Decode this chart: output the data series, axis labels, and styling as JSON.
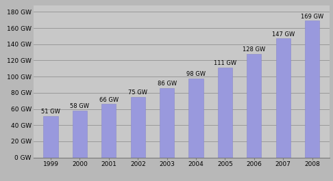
{
  "years": [
    "1999",
    "2000",
    "2001",
    "2002",
    "2003",
    "2004",
    "2005",
    "2006",
    "2007",
    "2008"
  ],
  "values": [
    51,
    58,
    66,
    75,
    86,
    98,
    111,
    128,
    147,
    169
  ],
  "labels": [
    "51 GW",
    "58 GW",
    "66 GW",
    "75 GW",
    "86 GW",
    "98 GW",
    "111 GW",
    "128 GW",
    "147 GW",
    "169 GW"
  ],
  "bar_color": "#9999dd",
  "bar_edge_color": "#8888cc",
  "background_color": "#b8b8b8",
  "plot_bg_color": "#c8c8c8",
  "yticks": [
    0,
    20,
    40,
    60,
    80,
    100,
    120,
    140,
    160,
    180
  ],
  "ytick_labels": [
    "0 GW",
    "20 GW",
    "40 GW",
    "60 GW",
    "80 GW",
    "100 GW",
    "120 GW",
    "140 GW",
    "160 GW",
    "180 GW"
  ],
  "ylim": [
    0,
    188
  ],
  "grid_color": "#999999",
  "tick_fontsize": 6.5,
  "bar_label_fontsize": 6.0,
  "bar_width": 0.5
}
